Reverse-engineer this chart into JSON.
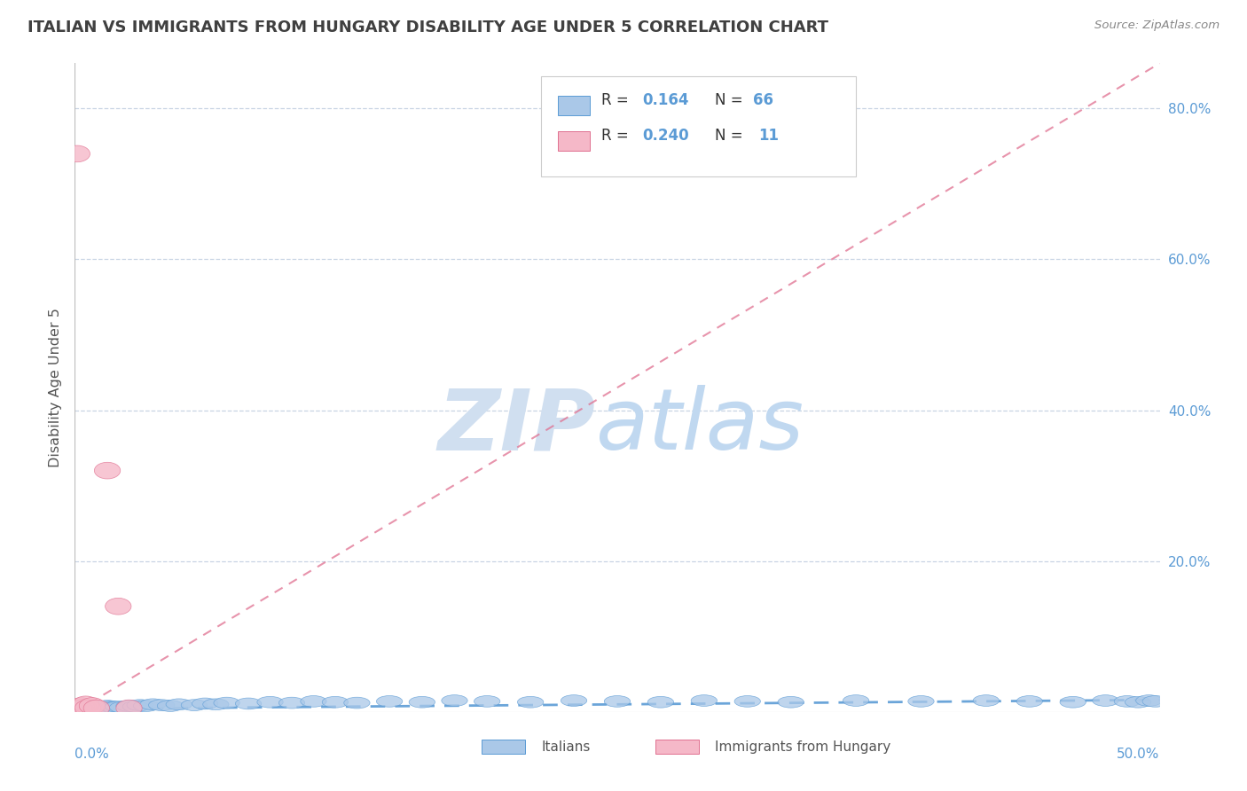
{
  "title": "ITALIAN VS IMMIGRANTS FROM HUNGARY DISABILITY AGE UNDER 5 CORRELATION CHART",
  "source": "Source: ZipAtlas.com",
  "ylabel": "Disability Age Under 5",
  "xlim": [
    0.0,
    0.5
  ],
  "ylim": [
    0.0,
    0.86
  ],
  "r_italian": 0.164,
  "n_italian": 66,
  "r_hungary": 0.24,
  "n_hungary": 11,
  "italian_color": "#aac8e8",
  "hungary_color": "#f5b8c8",
  "italian_line_color": "#5b9bd5",
  "hungary_line_color": "#e07090",
  "title_color": "#404040",
  "axis_label_color": "#5b9bd5",
  "background_color": "#ffffff",
  "grid_color": "#c8d4e4",
  "watermark_zip_color": "#d0dff0",
  "watermark_atlas_color": "#c0d8f0",
  "it_x": [
    0.001,
    0.002,
    0.003,
    0.004,
    0.005,
    0.005,
    0.006,
    0.006,
    0.007,
    0.007,
    0.008,
    0.008,
    0.009,
    0.009,
    0.01,
    0.01,
    0.011,
    0.012,
    0.013,
    0.014,
    0.015,
    0.016,
    0.017,
    0.018,
    0.019,
    0.02,
    0.022,
    0.025,
    0.028,
    0.03,
    0.033,
    0.036,
    0.04,
    0.044,
    0.048,
    0.055,
    0.06,
    0.065,
    0.07,
    0.08,
    0.09,
    0.1,
    0.11,
    0.12,
    0.13,
    0.145,
    0.16,
    0.175,
    0.19,
    0.21,
    0.23,
    0.25,
    0.27,
    0.29,
    0.31,
    0.33,
    0.36,
    0.39,
    0.42,
    0.44,
    0.46,
    0.475,
    0.485,
    0.49,
    0.495,
    0.498
  ],
  "it_y": [
    0.005,
    0.005,
    0.006,
    0.005,
    0.006,
    0.008,
    0.005,
    0.007,
    0.006,
    0.008,
    0.005,
    0.007,
    0.006,
    0.008,
    0.005,
    0.007,
    0.006,
    0.005,
    0.007,
    0.006,
    0.008,
    0.005,
    0.007,
    0.006,
    0.005,
    0.007,
    0.006,
    0.008,
    0.007,
    0.009,
    0.008,
    0.01,
    0.009,
    0.008,
    0.01,
    0.009,
    0.011,
    0.01,
    0.012,
    0.011,
    0.013,
    0.012,
    0.014,
    0.013,
    0.012,
    0.014,
    0.013,
    0.015,
    0.014,
    0.013,
    0.015,
    0.014,
    0.013,
    0.015,
    0.014,
    0.013,
    0.015,
    0.014,
    0.015,
    0.014,
    0.013,
    0.015,
    0.014,
    0.013,
    0.015,
    0.014
  ],
  "hu_x": [
    0.001,
    0.002,
    0.003,
    0.004,
    0.005,
    0.006,
    0.008,
    0.01,
    0.015,
    0.02,
    0.025
  ],
  "hu_y": [
    0.74,
    0.005,
    0.008,
    0.006,
    0.01,
    0.005,
    0.008,
    0.005,
    0.32,
    0.14,
    0.005
  ],
  "it_trend_x": [
    0.0,
    0.5
  ],
  "it_trend_y": [
    0.004,
    0.016
  ],
  "hu_trend_x": [
    0.0,
    0.5
  ],
  "hu_trend_y": [
    0.0,
    0.86
  ],
  "legend_labels": [
    "Italians",
    "Immigrants from Hungary"
  ]
}
